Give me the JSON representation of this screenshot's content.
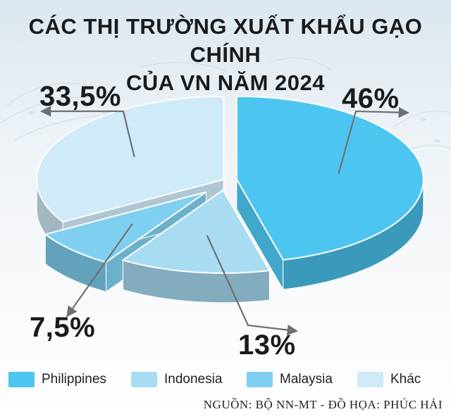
{
  "title": {
    "line1": "CÁC THỊ TRƯỜNG XUẤT KHẨU GẠO CHÍNH",
    "line2": "CỦA VN NĂM 2024"
  },
  "source": "NGUỒN: BỘ NN-MT - ĐỒ HỌA: PHÚC HẢI",
  "chart_data": {
    "type": "pie",
    "title": "CÁC THỊ TRƯỜNG XUẤT KHẨU GẠO CHÍNH CỦA VN NĂM 2024",
    "categories": [
      "Philippines",
      "Indonesia",
      "Malaysia",
      "Khác"
    ],
    "values": [
      46,
      13,
      7.5,
      33.5
    ],
    "value_labels": [
      "46%",
      "13%",
      "7,5%",
      "33,5%"
    ],
    "colors": [
      "#4cc6f0",
      "#a8dcf3",
      "#7fd0f0",
      "#cfeaf8"
    ],
    "legend_position": "bottom",
    "style": "3d-exploded"
  }
}
